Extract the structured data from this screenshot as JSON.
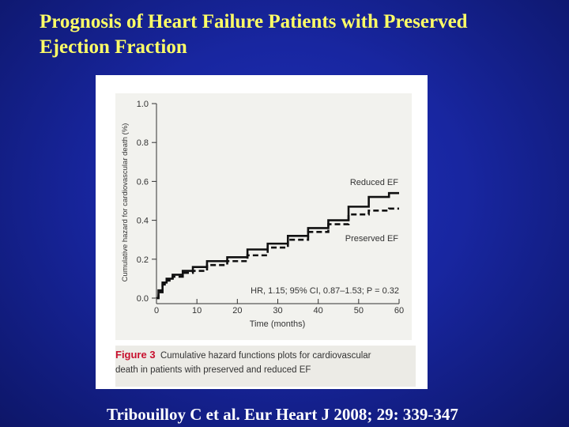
{
  "slide": {
    "title_line1": "Prognosis of Heart Failure Patients with Preserved",
    "title_line2": "Ejection Fraction",
    "citation": "Tribouilloy C et al. Eur Heart J 2008; 29: 339-347"
  },
  "figure": {
    "label": "Figure 3",
    "caption_line1": "Cumulative hazard functions plots for cardiovascular",
    "caption_line2": "death in patients with preserved and reduced EF"
  },
  "chart_data": {
    "type": "line",
    "title": "",
    "xlabel": "Time (months)",
    "ylabel": "Cumulative hazard for cardiovascular death (%)",
    "xlim": [
      0,
      60
    ],
    "ylim": [
      0,
      1.0
    ],
    "x_ticks": [
      "0",
      "10",
      "20",
      "30",
      "40",
      "50",
      "60"
    ],
    "y_ticks": [
      "0.0",
      "0.2",
      "0.4",
      "0.6",
      "0.8",
      "1.0"
    ],
    "annotation": "HR, 1.15; 95% CI, 0.87–1.53; P = 0.32",
    "grid": false,
    "series": [
      {
        "name": "Reduced EF",
        "style": "solid",
        "color": "#111111",
        "x": [
          0,
          1,
          2,
          3,
          5,
          8,
          10,
          15,
          20,
          25,
          30,
          35,
          40,
          45,
          50,
          55,
          60
        ],
        "y": [
          0.0,
          0.04,
          0.08,
          0.1,
          0.12,
          0.14,
          0.16,
          0.19,
          0.21,
          0.25,
          0.28,
          0.32,
          0.36,
          0.4,
          0.47,
          0.52,
          0.54
        ]
      },
      {
        "name": "Preserved EF",
        "style": "dashed",
        "color": "#111111",
        "x": [
          0,
          1,
          2,
          3,
          5,
          8,
          10,
          15,
          20,
          25,
          30,
          35,
          40,
          45,
          50,
          55,
          60
        ],
        "y": [
          0.0,
          0.03,
          0.07,
          0.09,
          0.11,
          0.13,
          0.14,
          0.17,
          0.19,
          0.22,
          0.26,
          0.3,
          0.34,
          0.38,
          0.43,
          0.45,
          0.46
        ]
      }
    ]
  }
}
